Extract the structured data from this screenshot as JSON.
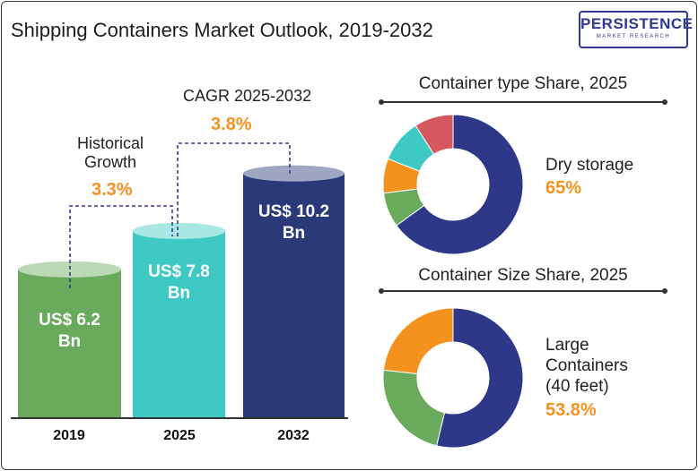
{
  "title": "Shipping Containers Market Outlook, 2019-2032",
  "logo": {
    "main": "PERSISTENCE",
    "sub": "MARKET RESEARCH"
  },
  "colors": {
    "orange": "#f5921e",
    "green": "#6aaa5c",
    "teal": "#3ec9c4",
    "navy": "#2a3a78",
    "donut_navy": "#2e3888",
    "red": "#d6585f"
  },
  "annotations": {
    "historical_label": "Historical\nGrowth",
    "historical_pct": "3.3%",
    "cagr_label": "CAGR 2025-2032",
    "cagr_pct": "3.8%"
  },
  "chart_data": [
    {
      "type": "bar",
      "title": "Shipping Containers Market Outlook, 2019-2032",
      "categories": [
        "2019",
        "2025",
        "2032"
      ],
      "values": [
        6.2,
        7.8,
        10.2
      ],
      "value_labels": [
        "US$ 6.2\nBn",
        "US$ 7.8\nBn",
        "US$ 10.2\nBn"
      ],
      "bar_colors": [
        "#6aaa5c",
        "#3ec9c4",
        "#2a3a78"
      ]
    },
    {
      "type": "pie",
      "title": "Container type Share, 2025",
      "highlight_label": "Dry storage",
      "highlight_pct": "65%",
      "slices": [
        {
          "value": 65,
          "color": "#2e3888"
        },
        {
          "value": 8,
          "color": "#6aaa5c"
        },
        {
          "value": 8,
          "color": "#f5921e"
        },
        {
          "value": 10,
          "color": "#3ec9c4"
        },
        {
          "value": 9,
          "color": "#d6585f"
        }
      ]
    },
    {
      "type": "pie",
      "title": "Container Size Share, 2025",
      "highlight_label": "Large\nContainers\n(40 feet)",
      "highlight_pct": "53.8%",
      "slices": [
        {
          "value": 53.8,
          "color": "#2e3888"
        },
        {
          "value": 23,
          "color": "#6aaa5c"
        },
        {
          "value": 23.2,
          "color": "#f5921e"
        }
      ]
    }
  ]
}
